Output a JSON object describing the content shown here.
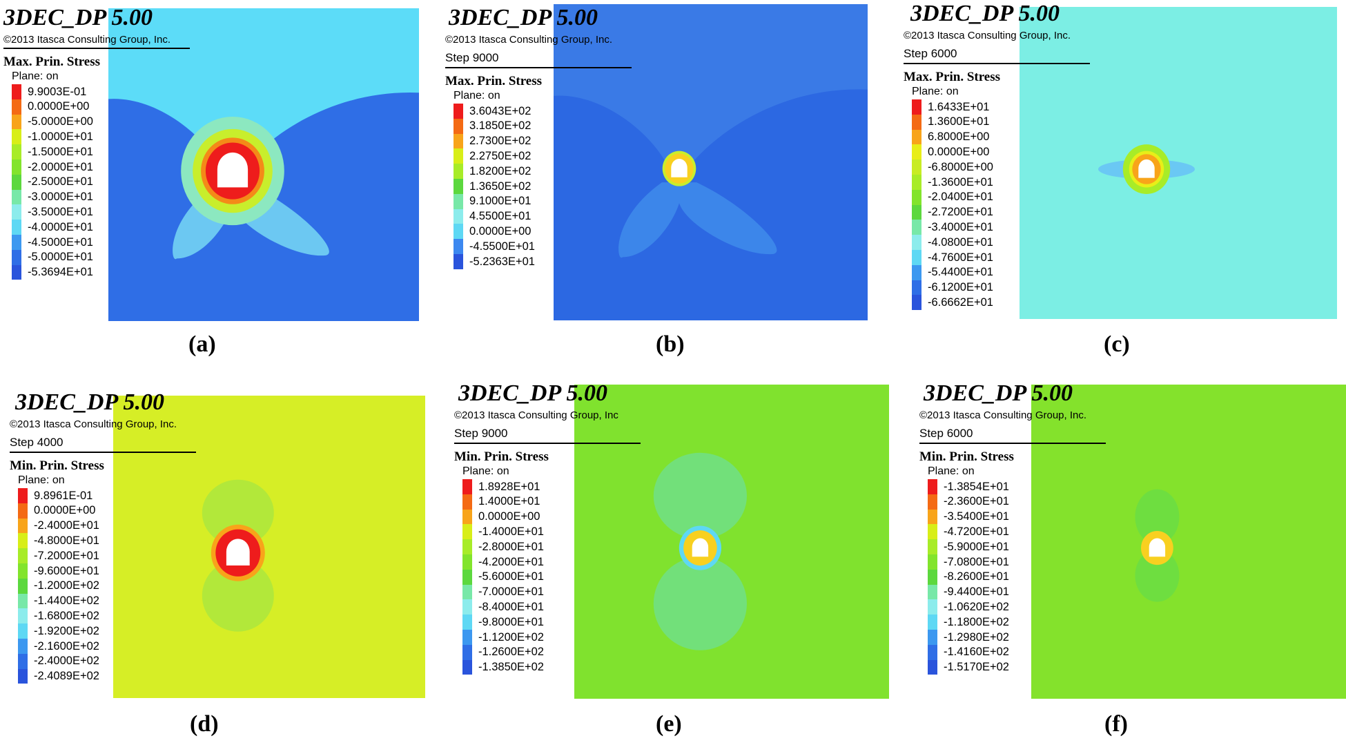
{
  "panels": [
    {
      "id": "a",
      "app_title": "3DEC_DP 5.00",
      "copyright": "©2013 Itasca Consulting Group, Inc.",
      "step": "",
      "quantity": "Max. Prin. Stress",
      "plane": "Plane: on",
      "caption": "(a)",
      "legend": [
        "9.9003E-01",
        "0.0000E+00",
        "-5.0000E+00",
        "-1.0000E+01",
        "-1.5000E+01",
        "-2.0000E+01",
        "-2.5000E+01",
        "-3.0000E+01",
        "-3.5000E+01",
        "-4.0000E+01",
        "-4.5000E+01",
        "-5.0000E+01",
        "-5.3694E+01"
      ],
      "colors": [
        "#ee1c1c",
        "#f46a14",
        "#f8a41a",
        "#d8ee18",
        "#a8ec28",
        "#82e42c",
        "#5cd83e",
        "#78e8a8",
        "#8cecec",
        "#5ed8f4",
        "#3c98f0",
        "#2f6ee6",
        "#2a54dc"
      ],
      "background_color": "#5cdcf8",
      "field_color": "#2f6ee6",
      "zone_color": "#6cc8f2",
      "pattern": "max-x"
    },
    {
      "id": "b",
      "app_title": "3DEC_DP 5.00",
      "copyright": "©2013 Itasca Consulting Group, Inc.",
      "step": "Step 9000",
      "quantity": "Max. Prin. Stress",
      "plane": "Plane: on",
      "caption": "(b)",
      "legend": [
        "3.6043E+02",
        "3.1850E+02",
        "2.7300E+02",
        "2.2750E+02",
        "1.8200E+02",
        "1.3650E+02",
        "9.1000E+01",
        "4.5500E+01",
        "0.0000E+00",
        "-4.5500E+01",
        "-5.2363E+01"
      ],
      "colors": [
        "#ee1c1c",
        "#f46a14",
        "#f8a41a",
        "#d8ee18",
        "#a8ec28",
        "#5cd83e",
        "#78e8a8",
        "#8cecec",
        "#5ed8f4",
        "#3c88f0",
        "#2a54dc"
      ],
      "background_color": "#3a7ae6",
      "field_color": "#2c68e2",
      "zone_color": "#3c86ea",
      "pattern": "max-x"
    },
    {
      "id": "c",
      "app_title": "3DEC_DP 5.00",
      "copyright": "©2013 Itasca Consulting Group, Inc.",
      "step": "Step 6000",
      "quantity": "Max. Prin. Stress",
      "plane": "Plane: on",
      "caption": "(c)",
      "legend": [
        "1.6433E+01",
        "1.3600E+01",
        "6.8000E+00",
        "0.0000E+00",
        "-6.8000E+00",
        "-1.3600E+01",
        "-2.0400E+01",
        "-2.7200E+01",
        "-3.4000E+01",
        "-4.0800E+01",
        "-4.7600E+01",
        "-5.4400E+01",
        "-6.1200E+01",
        "-6.6662E+01"
      ],
      "colors": [
        "#ee1c1c",
        "#f46a14",
        "#f8a41a",
        "#e8ee18",
        "#c8ec24",
        "#a8ec28",
        "#82e42c",
        "#5cd83e",
        "#78e8a8",
        "#8cecec",
        "#5ed8f4",
        "#3c98f0",
        "#2f6ee6",
        "#2a54dc"
      ],
      "background_color": "#7ceee4",
      "field_color": "#7ceee4",
      "zone_color": "#6ac8f4",
      "pattern": "max-small"
    },
    {
      "id": "d",
      "app_title": "3DEC_DP 5.00",
      "copyright": "©2013 Itasca Consulting Group, Inc.",
      "step": "Step 4000",
      "quantity": "Min. Prin. Stress",
      "plane": "Plane: on",
      "caption": "(d)",
      "legend": [
        "9.8961E-01",
        "0.0000E+00",
        "-2.4000E+01",
        "-4.8000E+01",
        "-7.2000E+01",
        "-9.6000E+01",
        "-1.2000E+02",
        "-1.4400E+02",
        "-1.6800E+02",
        "-1.9200E+02",
        "-2.1600E+02",
        "-2.4000E+02",
        "-2.4089E+02"
      ],
      "colors": [
        "#ee1c1c",
        "#f46a14",
        "#f8a41a",
        "#d8ee18",
        "#a8ec28",
        "#82e42c",
        "#5cd83e",
        "#78e8a8",
        "#8cecec",
        "#5ed8f4",
        "#3c98f0",
        "#2f6ee6",
        "#2a54dc"
      ],
      "background_color": "#d6ee26",
      "field_color": "#d6ee26",
      "zone_color": "#b2e83a",
      "pattern": "min-hourglass"
    },
    {
      "id": "e",
      "app_title": "3DEC_DP 5.00",
      "copyright": "©2013 Itasca Consulting Group, Inc",
      "step": "Step 9000",
      "quantity": "Min. Prin. Stress",
      "plane": "Plane: on",
      "caption": "(e)",
      "legend": [
        "1.8928E+01",
        "1.4000E+01",
        "0.0000E+00",
        "-1.4000E+01",
        "-2.8000E+01",
        "-4.2000E+01",
        "-5.6000E+01",
        "-7.0000E+01",
        "-8.4000E+01",
        "-9.8000E+01",
        "-1.1200E+02",
        "-1.2600E+02",
        "-1.3850E+02"
      ],
      "colors": [
        "#ee1c1c",
        "#f46a14",
        "#f8a41a",
        "#d8ee18",
        "#a8ec28",
        "#82e42c",
        "#5cd83e",
        "#78e8a8",
        "#8cecec",
        "#5ed8f4",
        "#3c98f0",
        "#2f6ee6",
        "#2a54dc"
      ],
      "background_color": "#80e22e",
      "field_color": "#80e22e",
      "zone_color": "#72e07a",
      "pattern": "min-hourglass-large"
    },
    {
      "id": "f",
      "app_title": "3DEC_DP 5.00",
      "copyright": "©2013 Itasca Consulting Group, Inc.",
      "step": "Step 6000",
      "quantity": "Min. Prin. Stress",
      "plane": "Plane: on",
      "caption": "(f)",
      "legend": [
        "-1.3854E+01",
        "-2.3600E+01",
        "-3.5400E+01",
        "-4.7200E+01",
        "-5.9000E+01",
        "-7.0800E+01",
        "-8.2600E+01",
        "-9.4400E+01",
        "-1.0620E+02",
        "-1.1800E+02",
        "-1.2980E+02",
        "-1.4160E+02",
        "-1.5170E+02"
      ],
      "colors": [
        "#ee1c1c",
        "#f46a14",
        "#f8a41a",
        "#d8ee18",
        "#a8ec28",
        "#82e42c",
        "#5cd83e",
        "#78e8a8",
        "#8cecec",
        "#5ed8f4",
        "#3c98f0",
        "#2f6ee6",
        "#2a54dc"
      ],
      "background_color": "#84e22c",
      "field_color": "#84e22c",
      "zone_color": "#6ede40",
      "pattern": "min-small"
    }
  ]
}
